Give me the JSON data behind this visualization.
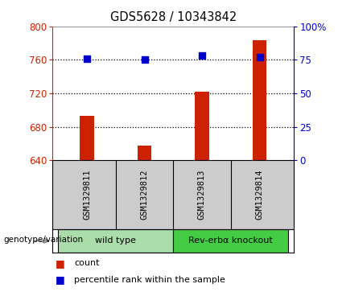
{
  "title": "GDS5628 / 10343842",
  "samples": [
    "GSM1329811",
    "GSM1329812",
    "GSM1329813",
    "GSM1329814"
  ],
  "counts": [
    693,
    658,
    722,
    783
  ],
  "percentile_ranks": [
    76,
    75,
    78,
    77
  ],
  "ylim_left": [
    640,
    800
  ],
  "ylim_right": [
    0,
    100
  ],
  "yticks_left": [
    640,
    680,
    720,
    760,
    800
  ],
  "yticks_right": [
    0,
    25,
    50,
    75,
    100
  ],
  "yticklabels_right": [
    "0",
    "25",
    "50",
    "75",
    "100%"
  ],
  "bar_color": "#cc2200",
  "dot_color": "#0000cc",
  "bg_color": "#ffffff",
  "plot_bg": "#ffffff",
  "sample_label_bg": "#cccccc",
  "groups": [
    {
      "label": "wild type",
      "samples": [
        0,
        1
      ],
      "color": "#aaddaa"
    },
    {
      "label": "Rev-erbα knockout",
      "samples": [
        2,
        3
      ],
      "color": "#44cc44"
    }
  ],
  "genotype_label": "genotype/variation",
  "legend_items": [
    {
      "color": "#cc2200",
      "label": "count"
    },
    {
      "color": "#0000cc",
      "label": "percentile rank within the sample"
    }
  ],
  "left_axis_color": "#cc2200",
  "right_axis_color": "#0000cc",
  "bar_width": 0.25,
  "dot_size": 30,
  "grid_yticks": [
    680,
    720,
    760
  ]
}
